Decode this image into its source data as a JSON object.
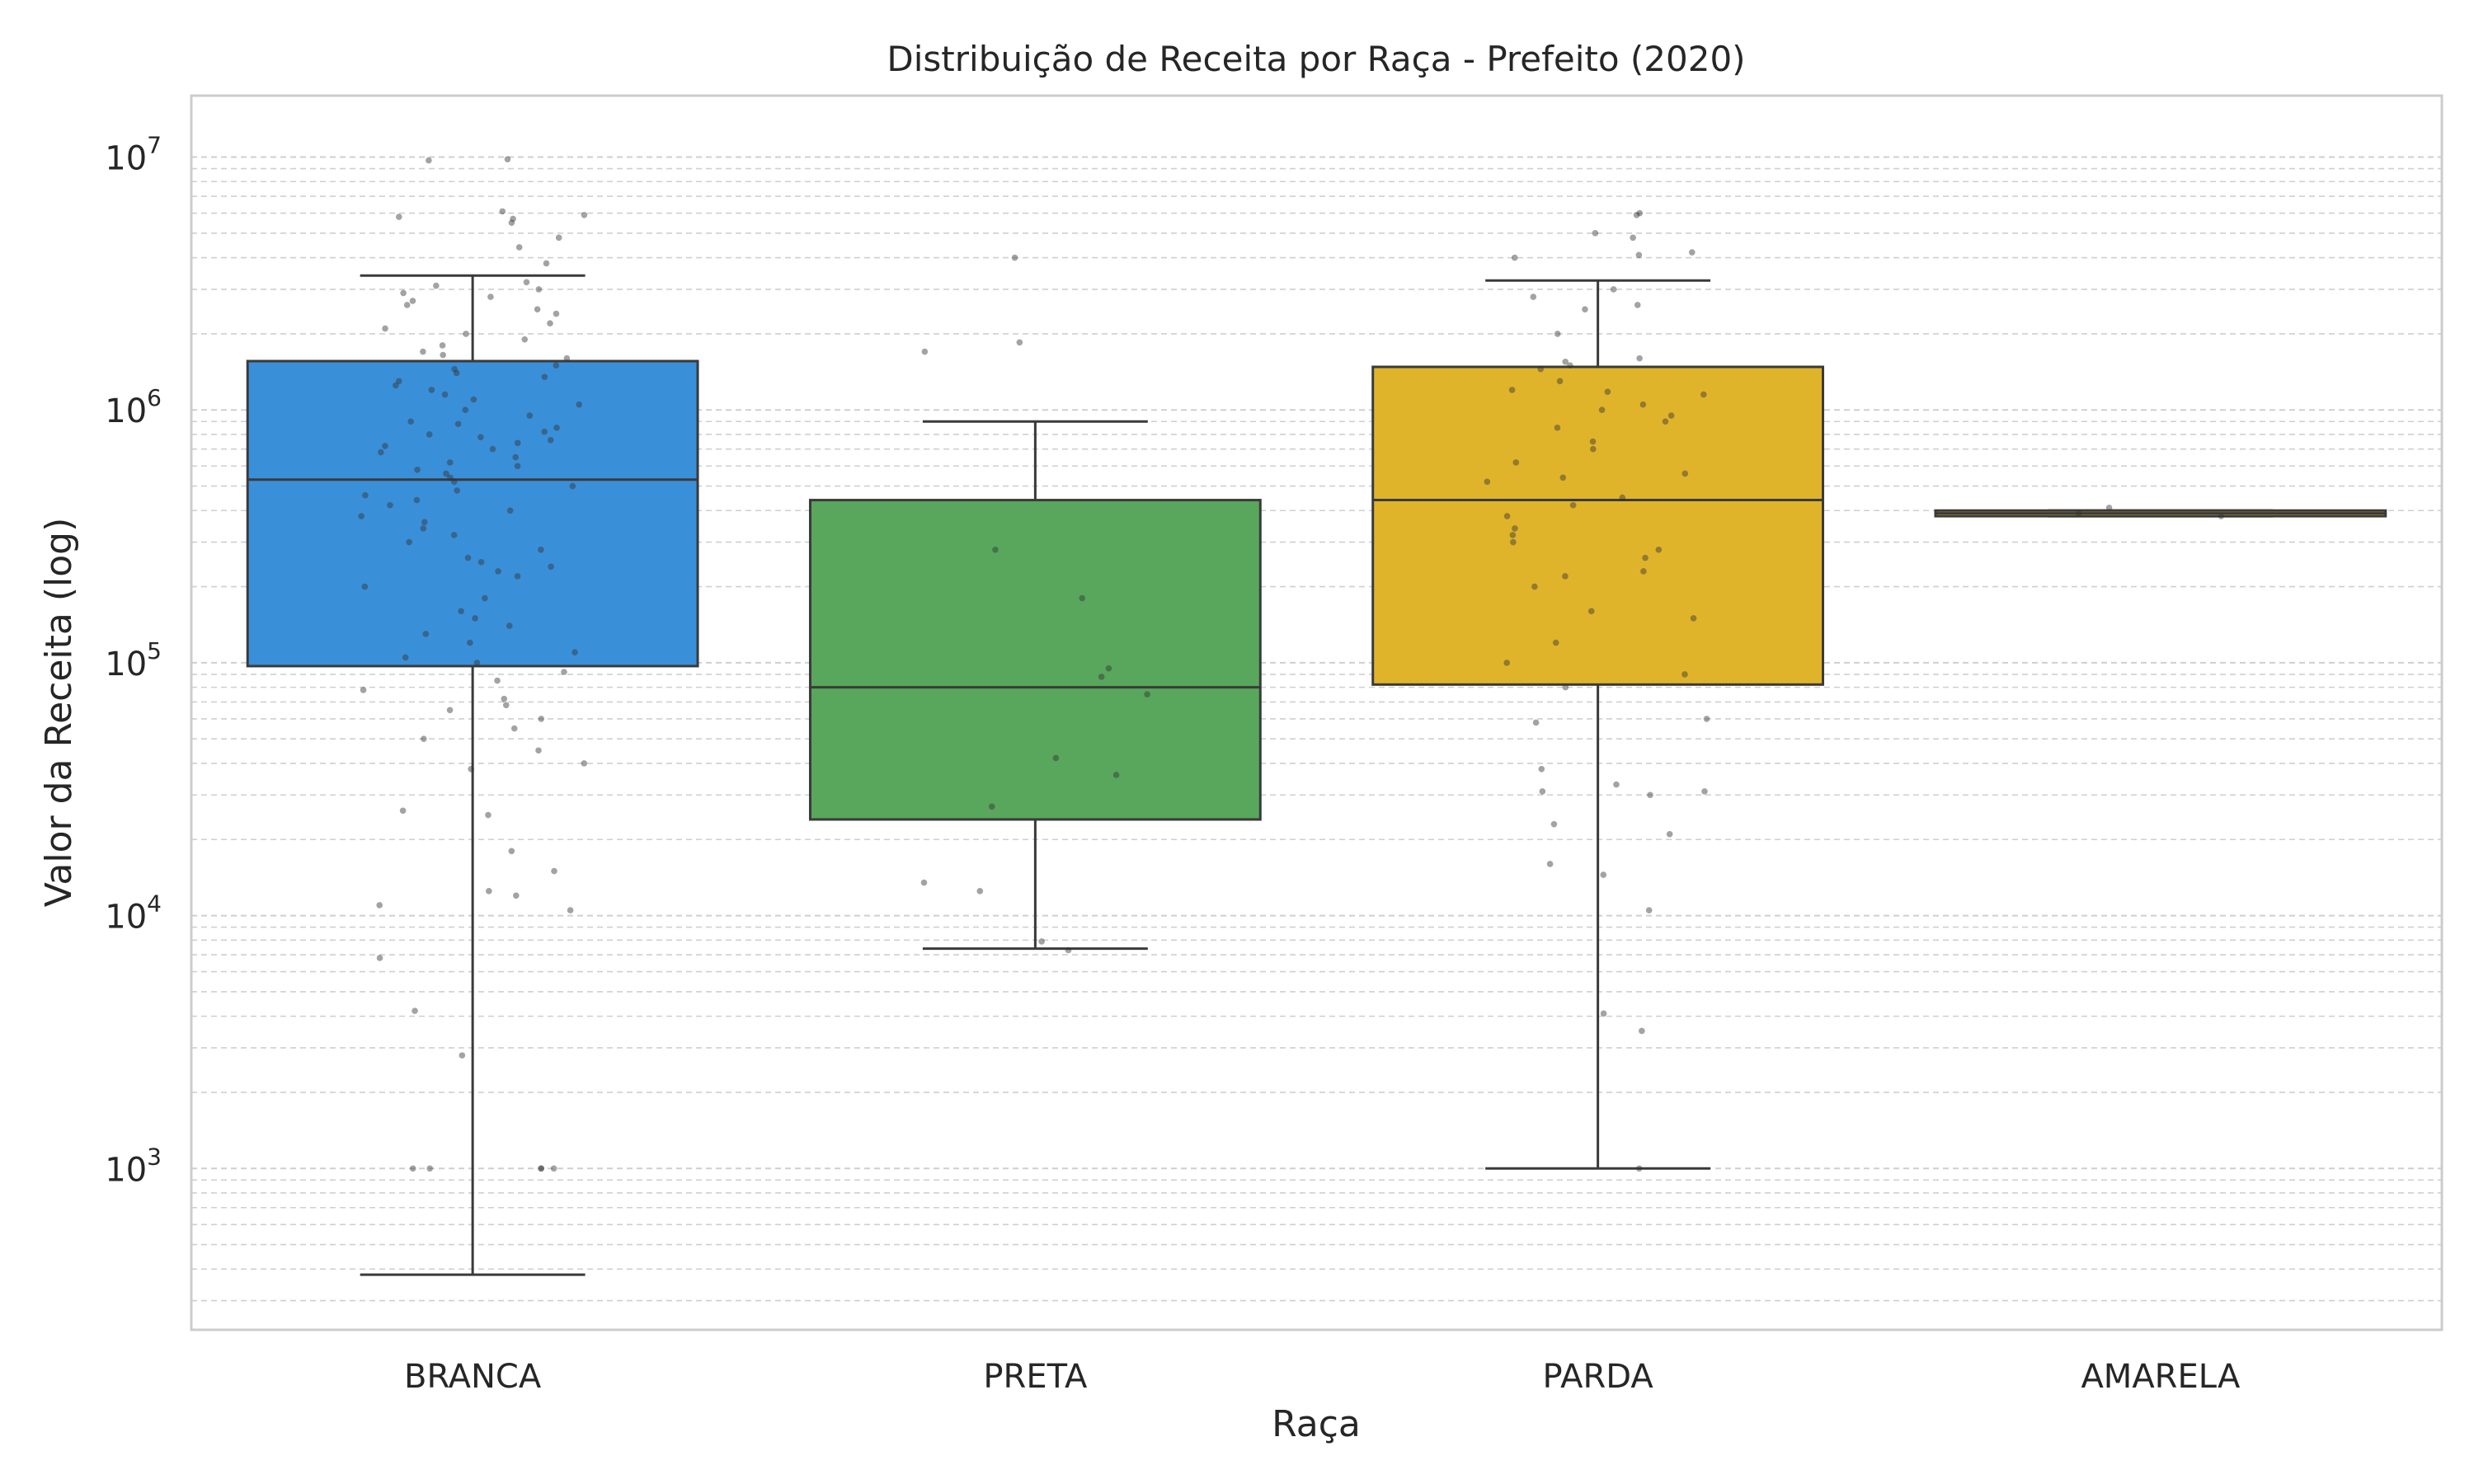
{
  "chart_data": {
    "type": "box",
    "title": "Distribuição de Receita por Raça - Prefeito (2020)",
    "xlabel": "Raça",
    "ylabel": "Valor da Receita (log)",
    "yscale": "log",
    "ylim": [
      230,
      17500000
    ],
    "yticks": [
      {
        "value": 1000,
        "base": "10",
        "exp": "3"
      },
      {
        "value": 10000,
        "base": "10",
        "exp": "4"
      },
      {
        "value": 100000,
        "base": "10",
        "exp": "5"
      },
      {
        "value": 1000000,
        "base": "10",
        "exp": "6"
      },
      {
        "value": 10000000,
        "base": "10",
        "exp": "7"
      }
    ],
    "grid": "horizontal, dashed, major and minor",
    "categories": [
      "BRANCA",
      "PRETA",
      "PARDA",
      "AMARELA"
    ],
    "boxes": [
      {
        "category": "BRANCA",
        "color": "#3a8fd9",
        "whisker_low": 380,
        "q1": 97000,
        "median": 530000,
        "q3": 1560000,
        "whisker_high": 3400000
      },
      {
        "category": "PRETA",
        "color": "#58a75c",
        "whisker_low": 7400,
        "q1": 24000,
        "median": 80000,
        "q3": 440000,
        "whisker_high": 900000
      },
      {
        "category": "PARDA",
        "color": "#e0b42a",
        "whisker_low": 1000,
        "q1": 82000,
        "median": 440000,
        "q3": 1480000,
        "whisker_high": 3250000
      },
      {
        "category": "AMARELA",
        "color": "#e0b42a",
        "whisker_low": 380000,
        "q1": 380000,
        "median": 390000,
        "q3": 400000,
        "whisker_high": 400000
      }
    ],
    "points": [
      {
        "category": "BRANCA",
        "values": [
          9800000,
          9700000,
          6100000,
          5900000,
          5700000,
          5500000,
          5800000,
          4800000,
          4400000,
          3800000,
          3200000,
          3100000,
          3000000,
          2900000,
          2800000,
          2700000,
          2600000,
          2500000,
          2400000,
          2200000,
          2100000,
          2000000,
          1900000,
          1800000,
          1700000,
          1650000,
          1600000,
          1500000,
          1450000,
          1400000,
          1350000,
          1300000,
          1250000,
          1200000,
          1150000,
          1100000,
          1050000,
          1000000,
          950000,
          900000,
          880000,
          850000,
          820000,
          800000,
          780000,
          760000,
          740000,
          720000,
          700000,
          680000,
          650000,
          620000,
          600000,
          580000,
          560000,
          540000,
          520000,
          500000,
          480000,
          460000,
          440000,
          420000,
          400000,
          380000,
          360000,
          340000,
          320000,
          300000,
          280000,
          260000,
          250000,
          240000,
          230000,
          220000,
          200000,
          180000,
          160000,
          150000,
          140000,
          130000,
          120000,
          110000,
          105000,
          100000,
          92000,
          85000,
          78000,
          72000,
          68000,
          65000,
          60000,
          55000,
          50000,
          45000,
          40000,
          38000,
          26000,
          25000,
          18000,
          15000,
          12500,
          12000,
          11000,
          10500,
          6800,
          4200,
          2800,
          1000,
          1000,
          1000,
          1000,
          1000
        ]
      },
      {
        "category": "PRETA",
        "values": [
          4000000,
          1850000,
          1700000,
          280000,
          180000,
          95000,
          88000,
          75000,
          42000,
          36000,
          27000,
          13500,
          12500,
          7900,
          7300
        ]
      },
      {
        "category": "PARDA",
        "values": [
          6000000,
          5900000,
          5000000,
          4800000,
          4200000,
          4100000,
          4000000,
          3000000,
          2800000,
          2600000,
          2500000,
          2000000,
          1600000,
          1550000,
          1500000,
          1450000,
          1300000,
          1200000,
          1180000,
          1150000,
          1050000,
          1000000,
          950000,
          900000,
          850000,
          750000,
          700000,
          620000,
          560000,
          540000,
          520000,
          450000,
          420000,
          380000,
          340000,
          320000,
          300000,
          280000,
          260000,
          230000,
          220000,
          200000,
          160000,
          150000,
          120000,
          100000,
          90000,
          80000,
          60000,
          58000,
          38000,
          33000,
          31000,
          31000,
          30000,
          23000,
          21000,
          16000,
          14500,
          10500,
          4100,
          3500,
          1000
        ]
      },
      {
        "category": "AMARELA",
        "values": [
          410000,
          390000,
          380000
        ]
      }
    ]
  }
}
